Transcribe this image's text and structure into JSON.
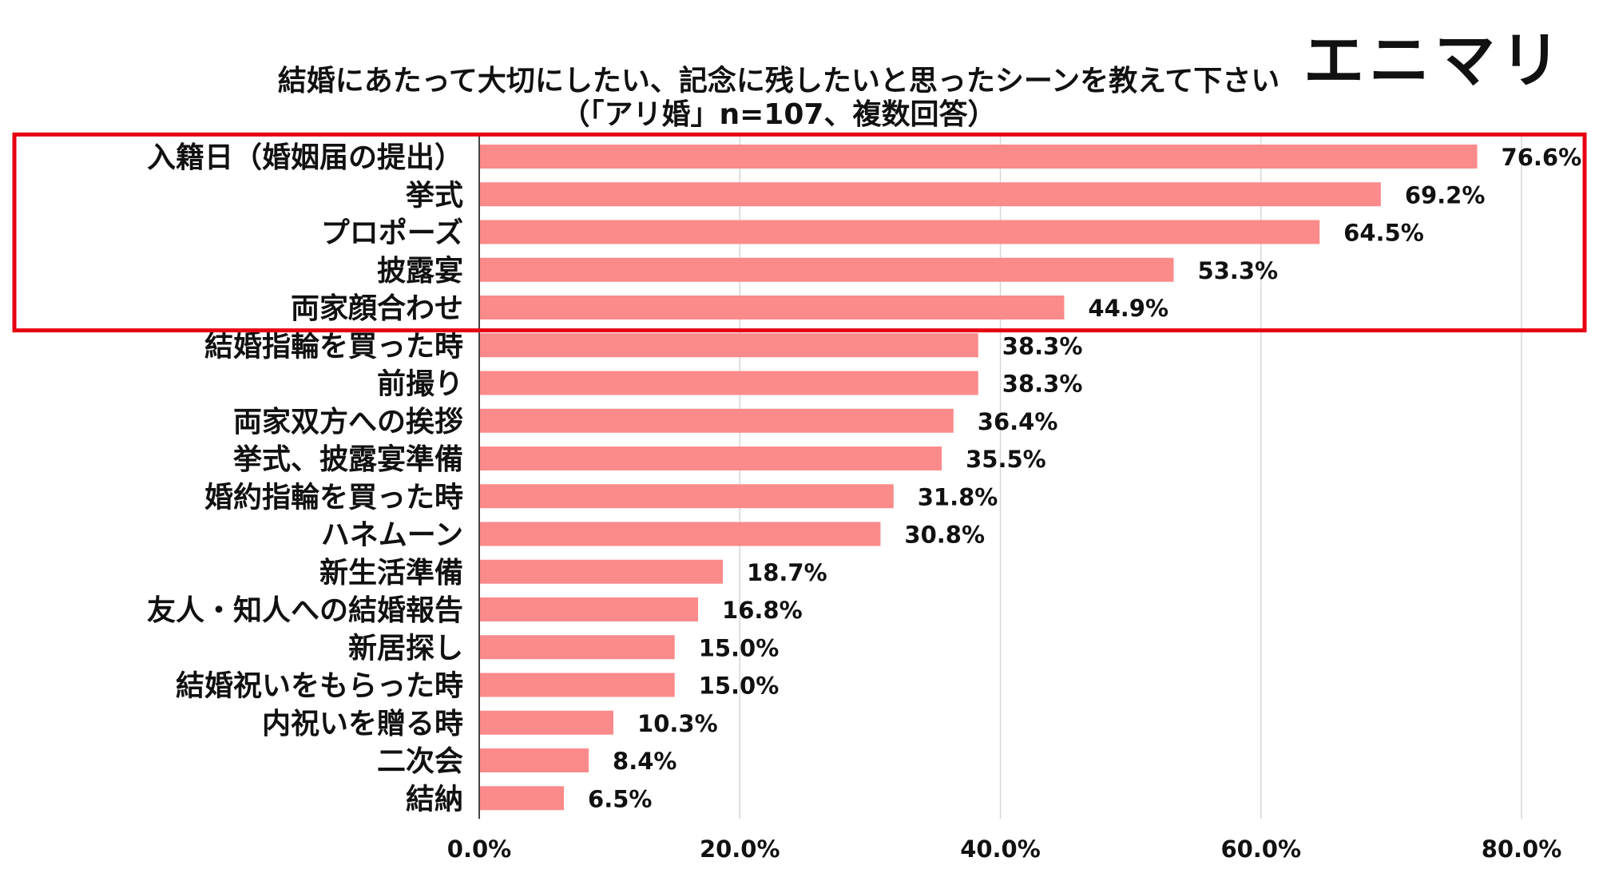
{
  "brand": {
    "logo_text": "エニマリ"
  },
  "chart_data": {
    "type": "bar",
    "orientation": "horizontal",
    "title": "結婚にあたって大切にしたい、記念に残したいと思ったシーンを教えて下さい",
    "subtitle": "（「アリ婚」n=107、複数回答）",
    "categories": [
      "入籍日（婚姻届の提出）",
      "挙式",
      "プロポーズ",
      "披露宴",
      "両家顔合わせ",
      "結婚指輪を買った時",
      "前撮り",
      "両家双方への挨拶",
      "挙式、披露宴準備",
      "婚約指輪を買った時",
      "ハネムーン",
      "新生活準備",
      "友人・知人への結婚報告",
      "新居探し",
      "結婚祝いをもらった時",
      "内祝いを贈る時",
      "二次会",
      "結納"
    ],
    "values": [
      76.6,
      69.2,
      64.5,
      53.3,
      44.9,
      38.3,
      38.3,
      36.4,
      35.5,
      31.8,
      30.8,
      18.7,
      16.8,
      15.0,
      15.0,
      10.3,
      8.4,
      6.5
    ],
    "value_labels": [
      "76.6%",
      "69.2%",
      "64.5%",
      "53.3%",
      "44.9%",
      "38.3%",
      "38.3%",
      "36.4%",
      "35.5%",
      "31.8%",
      "30.8%",
      "18.7%",
      "16.8%",
      "15.0%",
      "15.0%",
      "10.3%",
      "8.4%",
      "6.5%"
    ],
    "xlim": [
      0,
      80
    ],
    "x_ticks": [
      0,
      20,
      40,
      60,
      80
    ],
    "x_tick_labels": [
      "0.0%",
      "20.0%",
      "40.0%",
      "60.0%",
      "80.0%"
    ],
    "grid": "vertical",
    "highlight_top_n": 5,
    "colors": {
      "bar": "#fb8a8a",
      "highlight": "#e60012",
      "grid": "#d6d6d6",
      "axis": "#444444"
    }
  }
}
